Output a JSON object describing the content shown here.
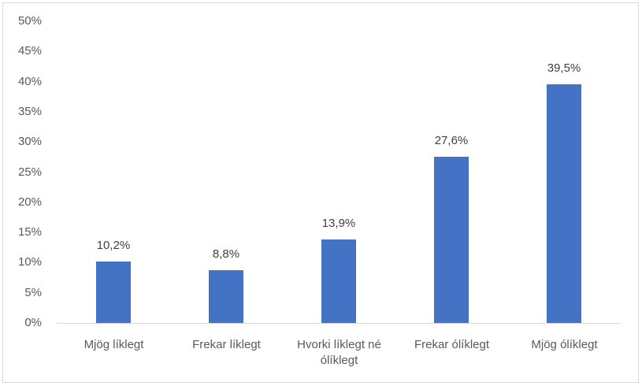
{
  "chart_data": {
    "type": "bar",
    "title": "",
    "xlabel": "",
    "ylabel": "",
    "ylim": [
      0,
      50
    ],
    "yticks": [
      "0%",
      "5%",
      "10%",
      "15%",
      "20%",
      "25%",
      "30%",
      "35%",
      "40%",
      "45%",
      "50%"
    ],
    "categories": [
      "Mjög líklegt",
      "Frekar líklegt",
      "Hvorki líklegt né ólíklegt",
      "Frekar ólíklegt",
      "Mjög ólíklegt"
    ],
    "values": [
      10.2,
      8.8,
      13.9,
      27.6,
      39.5
    ],
    "data_labels": [
      "10,2%",
      "8,8%",
      "13,9%",
      "27,6%",
      "39,5%"
    ],
    "bar_color": "#4472c4",
    "grid": false,
    "legend": null
  },
  "xlabels": [
    {
      "line1": "Mjög líklegt",
      "line2": ""
    },
    {
      "line1": "Frekar líklegt",
      "line2": ""
    },
    {
      "line1": "Hvorki líklegt né",
      "line2": "ólíklegt"
    },
    {
      "line1": "Frekar ólíklegt",
      "line2": ""
    },
    {
      "line1": "Mjög ólíklegt",
      "line2": ""
    }
  ]
}
